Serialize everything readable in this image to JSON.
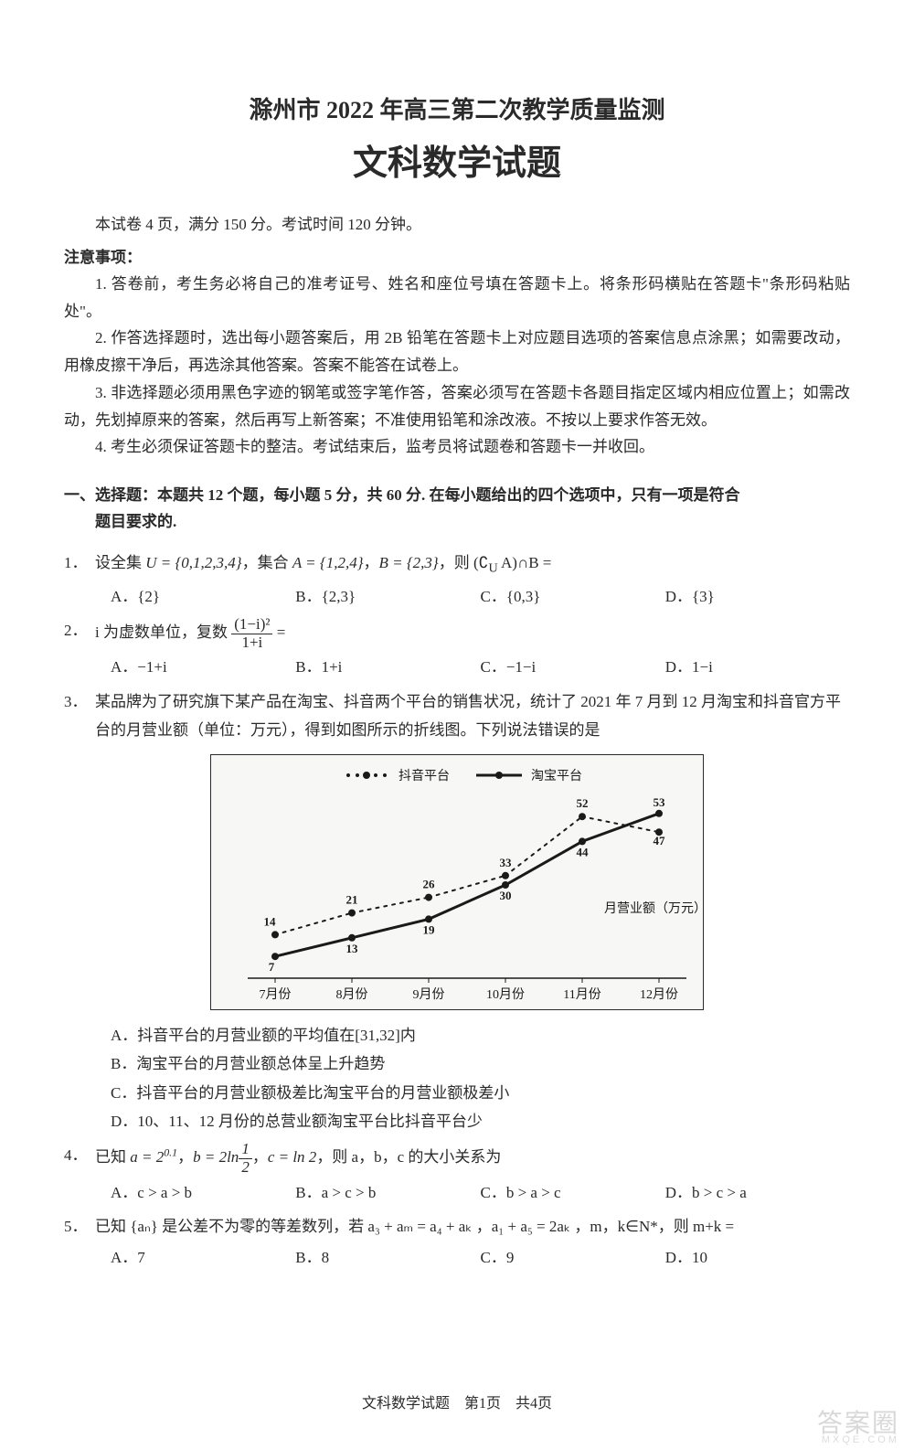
{
  "header": {
    "title1": "滁州市 2022 年高三第二次教学质量监测",
    "title2": "文科数学试题"
  },
  "intro": "本试卷 4 页，满分 150 分。考试时间 120 分钟。",
  "notice": {
    "heading": "注意事项：",
    "items": [
      "1. 答卷前，考生务必将自己的准考证号、姓名和座位号填在答题卡上。将条形码横贴在答题卡\"条形码粘贴处\"。",
      "2. 作答选择题时，选出每小题答案后，用 2B 铅笔在答题卡上对应题目选项的答案信息点涂黑；如需要改动，用橡皮擦干净后，再选涂其他答案。答案不能答在试卷上。",
      "3. 非选择题必须用黑色字迹的钢笔或签字笔作答，答案必须写在答题卡各题目指定区域内相应位置上；如需改动，先划掉原来的答案，然后再写上新答案；不准使用铅笔和涂改液。不按以上要求作答无效。",
      "4. 考生必须保证答题卡的整洁。考试结束后，监考员将试题卷和答题卡一并收回。"
    ]
  },
  "section1": {
    "heading_line1": "一、选择题：本题共 12 个题，每小题 5 分，共 60 分. 在每小题给出的四个选项中，只有一项是符合",
    "heading_line2": "题目要求的."
  },
  "q1": {
    "num": "1．",
    "stem_prefix": "设全集 ",
    "U": "U = {0,1,2,3,4}",
    "mid1": "，集合 ",
    "A": "A = {1,2,4}",
    "mid2": "，",
    "B": "B = {2,3}",
    "mid3": "，则 ",
    "expr": "(∁U A)∩B =",
    "opts": {
      "A": "A．{2}",
      "B": "B．{2,3}",
      "C": "C．{0,3}",
      "D": "D．{3}"
    }
  },
  "q2": {
    "num": "2．",
    "stem": "i 为虚数单位，复数 ",
    "frac_num": "(1−i)²",
    "frac_den": "1+i",
    "after": " =",
    "opts": {
      "A": "A．−1+i",
      "B": "B．1+i",
      "C": "C．−1−i",
      "D": "D．1−i"
    }
  },
  "q3": {
    "num": "3．",
    "stem": "某品牌为了研究旗下某产品在淘宝、抖音两个平台的销售状况，统计了 2021 年 7 月到 12 月淘宝和抖音官方平台的月营业额（单位：万元），得到如图所示的折线图。下列说法错误的是",
    "chart": {
      "type": "line",
      "legend": {
        "douyin": "抖音平台",
        "taobao": "淘宝平台"
      },
      "x_labels": [
        "7月份",
        "8月份",
        "9月份",
        "10月份",
        "11月份",
        "12月份"
      ],
      "douyin_values": [
        14,
        21,
        26,
        33,
        52,
        47
      ],
      "taobao_values": [
        7,
        13,
        19,
        30,
        44,
        53
      ],
      "y_label": "月营业额（万元）",
      "y_min": 0,
      "y_max": 60,
      "colors": {
        "line": "#1a1a1a",
        "bg": "#f7f7f5",
        "border": "#2a2a2a"
      },
      "line_width_taobao": 3,
      "line_width_douyin": 2,
      "marker_radius": 4
    },
    "opts": {
      "A": "A．抖音平台的月营业额的平均值在[31,32]内",
      "B": "B．淘宝平台的月营业额总体呈上升趋势",
      "C": "C．抖音平台的月营业额极差比淘宝平台的月营业额极差小",
      "D": "D．10、11、12 月份的总营业额淘宝平台比抖音平台少"
    }
  },
  "q4": {
    "num": "4．",
    "stem_prefix": "已知 ",
    "a": "a = 2^{0.1}",
    "mid1": "，",
    "b_pre": "b = 2ln",
    "b_frac_num": "1",
    "b_frac_den": "2",
    "mid2": "，",
    "c": "c = ln 2",
    "mid3": "，则 a，b，c 的大小关系为",
    "opts": {
      "A": "A．c > a > b",
      "B": "B．a > c > b",
      "C": "C．b > a > c",
      "D": "D．b > c > a"
    }
  },
  "q5": {
    "num": "5．",
    "stem": "已知 {aₙ} 是公差不为零的等差数列，若 a₃ + aₘ = a₄ + aₖ ，a₁ + a₅ = 2aₖ ，m，k∈N*，则 m+k =",
    "opts": {
      "A": "A．7",
      "B": "B．8",
      "C": "C．9",
      "D": "D．10"
    }
  },
  "footer": "文科数学试题　第1页　共4页",
  "watermark": {
    "main": "答案圈",
    "sub": "MXQE.COM"
  }
}
